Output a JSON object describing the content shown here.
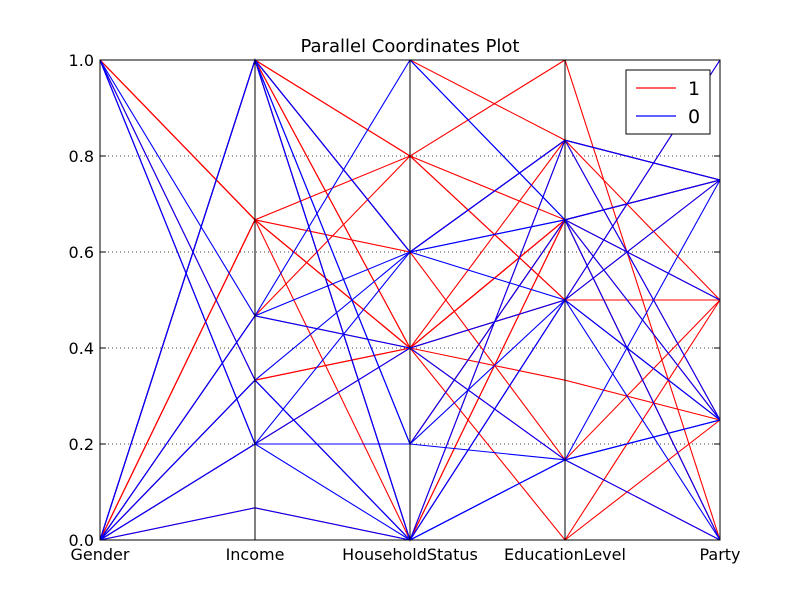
{
  "chart_data": {
    "type": "parallel-coordinates",
    "title": "Parallel Coordinates Plot",
    "axes": [
      "Gender",
      "Income",
      "HouseholdStatus",
      "EducationLevel",
      "Party"
    ],
    "ylim": [
      0,
      1
    ],
    "yticks": [
      "0.0",
      "0.2",
      "0.4",
      "0.6",
      "0.8",
      "1.0"
    ],
    "grid": true,
    "legend_position": "top-right",
    "colors": {
      "1": "#ff0000",
      "0": "#0000ff"
    },
    "series": [
      {
        "name": "1",
        "lines": [
          [
            1,
            1,
            0.4,
            0.667,
            0.75
          ],
          [
            1,
            1,
            0.8,
            0.667,
            0.75
          ],
          [
            1,
            1,
            1,
            0.833,
            0.75
          ],
          [
            1,
            0.667,
            0.6,
            0.833,
            0.5
          ],
          [
            1,
            0.667,
            0.4,
            0.5,
            0.5
          ],
          [
            1,
            0.667,
            0,
            0.667,
            0.75
          ],
          [
            1,
            0.333,
            0.4,
            0.333,
            0.25
          ],
          [
            1,
            0.2,
            0.2,
            0.667,
            0
          ],
          [
            1,
            1,
            0,
            0.667,
            0.75
          ],
          [
            1,
            1,
            0.6,
            0.167,
            0.5
          ],
          [
            0,
            1,
            0.4,
            0.667,
            0
          ],
          [
            0,
            1,
            0.6,
            0.833,
            0.75
          ],
          [
            0,
            1,
            0,
            0.833,
            0.25
          ],
          [
            0,
            0.667,
            0.8,
            0.5,
            0.25
          ],
          [
            0,
            0.667,
            0.4,
            0.167,
            0
          ],
          [
            0,
            0.467,
            0.4,
            0,
            0.5
          ],
          [
            0,
            0.467,
            0.8,
            1,
            0
          ],
          [
            0,
            0.333,
            0.4,
            0.833,
            0.75
          ],
          [
            0,
            0.333,
            0,
            0.5,
            0.5
          ],
          [
            0,
            0.2,
            0.2,
            0.667,
            0.25
          ],
          [
            0,
            0.2,
            0.4,
            0.5,
            1
          ],
          [
            0,
            0.067,
            0,
            0,
            0.25
          ],
          [
            0,
            1,
            0.8,
            0.5,
            0.75
          ],
          [
            0,
            0.667,
            0.4,
            0.667,
            0.5
          ]
        ]
      },
      {
        "name": "0",
        "lines": [
          [
            1,
            1,
            0.6,
            0.667,
            0.75
          ],
          [
            1,
            1,
            0,
            0.167,
            0.25
          ],
          [
            1,
            1,
            1,
            0.667,
            0.5
          ],
          [
            1,
            0.467,
            0.4,
            0.5,
            0.25
          ],
          [
            1,
            0.333,
            0,
            0.5,
            0.75
          ],
          [
            1,
            0.2,
            0.4,
            0.167,
            0.25
          ],
          [
            1,
            0.2,
            0,
            0.833,
            0.75
          ],
          [
            1,
            1,
            0.2,
            0.667,
            0
          ],
          [
            0,
            1,
            0,
            0.5,
            0.25
          ],
          [
            0,
            1,
            0.6,
            0.833,
            0.75
          ],
          [
            0,
            0.467,
            0.6,
            0.5,
            0
          ],
          [
            0,
            0.333,
            0,
            0.167,
            0.75
          ],
          [
            0,
            0.2,
            0.2,
            0.167,
            0
          ],
          [
            0,
            0.2,
            0.6,
            0.833,
            0.25
          ],
          [
            0,
            0.067,
            0,
            0.167,
            0.25
          ],
          [
            0,
            0.467,
            1,
            0.667,
            0.75
          ],
          [
            0,
            1,
            0.2,
            0.5,
            1
          ],
          [
            0,
            0.333,
            0.6,
            0.667,
            0.25
          ]
        ]
      }
    ]
  }
}
